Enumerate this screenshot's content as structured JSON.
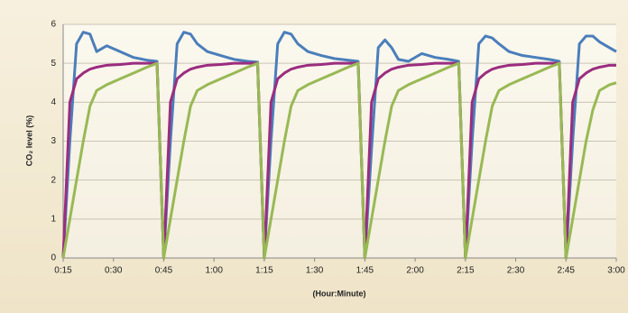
{
  "chart_data": {
    "type": "line",
    "ylabel": "CO₂ level (%)",
    "xlabel": "(Hour:Minute)",
    "x": [
      15,
      17,
      19,
      21,
      23,
      25,
      28,
      32,
      36,
      40,
      43,
      45,
      47,
      49,
      51,
      53,
      55,
      58,
      62,
      66,
      70,
      73,
      75,
      77,
      79,
      81,
      83,
      85,
      88,
      92,
      96,
      100,
      103,
      105,
      107,
      109,
      111,
      113,
      115,
      118,
      122,
      126,
      130,
      133,
      135,
      137,
      139,
      141,
      143,
      145,
      148,
      152,
      156,
      160,
      163,
      165,
      167,
      169,
      171,
      173,
      175,
      178,
      180
    ],
    "series": [
      {
        "name": "blue",
        "color": "#4a7ebb",
        "values": [
          0,
          3.0,
          5.5,
          5.8,
          5.75,
          5.3,
          5.45,
          5.3,
          5.15,
          5.08,
          5.05,
          0,
          3.0,
          5.5,
          5.8,
          5.75,
          5.5,
          5.3,
          5.2,
          5.1,
          5.05,
          5.03,
          0,
          3.0,
          5.5,
          5.8,
          5.75,
          5.5,
          5.3,
          5.2,
          5.12,
          5.08,
          5.05,
          0,
          2.8,
          5.4,
          5.6,
          5.4,
          5.1,
          5.05,
          5.25,
          5.15,
          5.1,
          5.05,
          0,
          3.0,
          5.5,
          5.7,
          5.65,
          5.5,
          5.3,
          5.2,
          5.15,
          5.1,
          5.05,
          0,
          3.0,
          5.5,
          5.7,
          5.7,
          5.55,
          5.4,
          5.3
        ]
      },
      {
        "name": "purple",
        "color": "#9b2d7f",
        "values": [
          0,
          4.0,
          4.6,
          4.75,
          4.85,
          4.9,
          4.95,
          4.97,
          5.0,
          5.0,
          5.0,
          0,
          4.0,
          4.6,
          4.75,
          4.85,
          4.9,
          4.95,
          4.97,
          5.0,
          5.0,
          5.0,
          0,
          4.0,
          4.6,
          4.75,
          4.85,
          4.9,
          4.95,
          4.97,
          5.0,
          5.0,
          5.0,
          0,
          4.0,
          4.6,
          4.75,
          4.85,
          4.9,
          4.95,
          4.97,
          5.0,
          5.0,
          5.0,
          0,
          4.0,
          4.6,
          4.75,
          4.85,
          4.9,
          4.95,
          4.97,
          5.0,
          5.0,
          5.0,
          0,
          4.0,
          4.6,
          4.75,
          4.85,
          4.9,
          4.95,
          4.95
        ]
      },
      {
        "name": "green",
        "color": "#98b954",
        "values": [
          0,
          1.0,
          2.0,
          3.0,
          3.9,
          4.3,
          4.45,
          4.6,
          4.75,
          4.9,
          5.0,
          0,
          1.0,
          2.0,
          3.0,
          3.9,
          4.3,
          4.45,
          4.6,
          4.75,
          4.9,
          5.0,
          0,
          1.0,
          2.0,
          3.0,
          3.9,
          4.3,
          4.45,
          4.6,
          4.75,
          4.9,
          5.0,
          0,
          1.0,
          2.0,
          3.0,
          3.9,
          4.3,
          4.45,
          4.6,
          4.75,
          4.9,
          5.0,
          0,
          1.0,
          2.0,
          3.0,
          3.9,
          4.3,
          4.45,
          4.6,
          4.75,
          4.9,
          5.0,
          0,
          1.0,
          2.0,
          3.0,
          3.8,
          4.3,
          4.45,
          4.5
        ]
      }
    ],
    "xlim": [
      15,
      180
    ],
    "xticks": [
      {
        "value": 15,
        "label": "0:15"
      },
      {
        "value": 30,
        "label": "0:30"
      },
      {
        "value": 45,
        "label": "0:45"
      },
      {
        "value": 60,
        "label": "1:00"
      },
      {
        "value": 75,
        "label": "1:15"
      },
      {
        "value": 90,
        "label": "1:30"
      },
      {
        "value": 105,
        "label": "1:45"
      },
      {
        "value": 120,
        "label": "2:00"
      },
      {
        "value": 135,
        "label": "2:15"
      },
      {
        "value": 150,
        "label": "2:30"
      },
      {
        "value": 165,
        "label": "2:45"
      },
      {
        "value": 180,
        "label": "3:00"
      }
    ],
    "ylim": [
      0,
      6
    ],
    "yticks": [
      0,
      1,
      2,
      3,
      4,
      5,
      6
    ],
    "grid": true
  }
}
